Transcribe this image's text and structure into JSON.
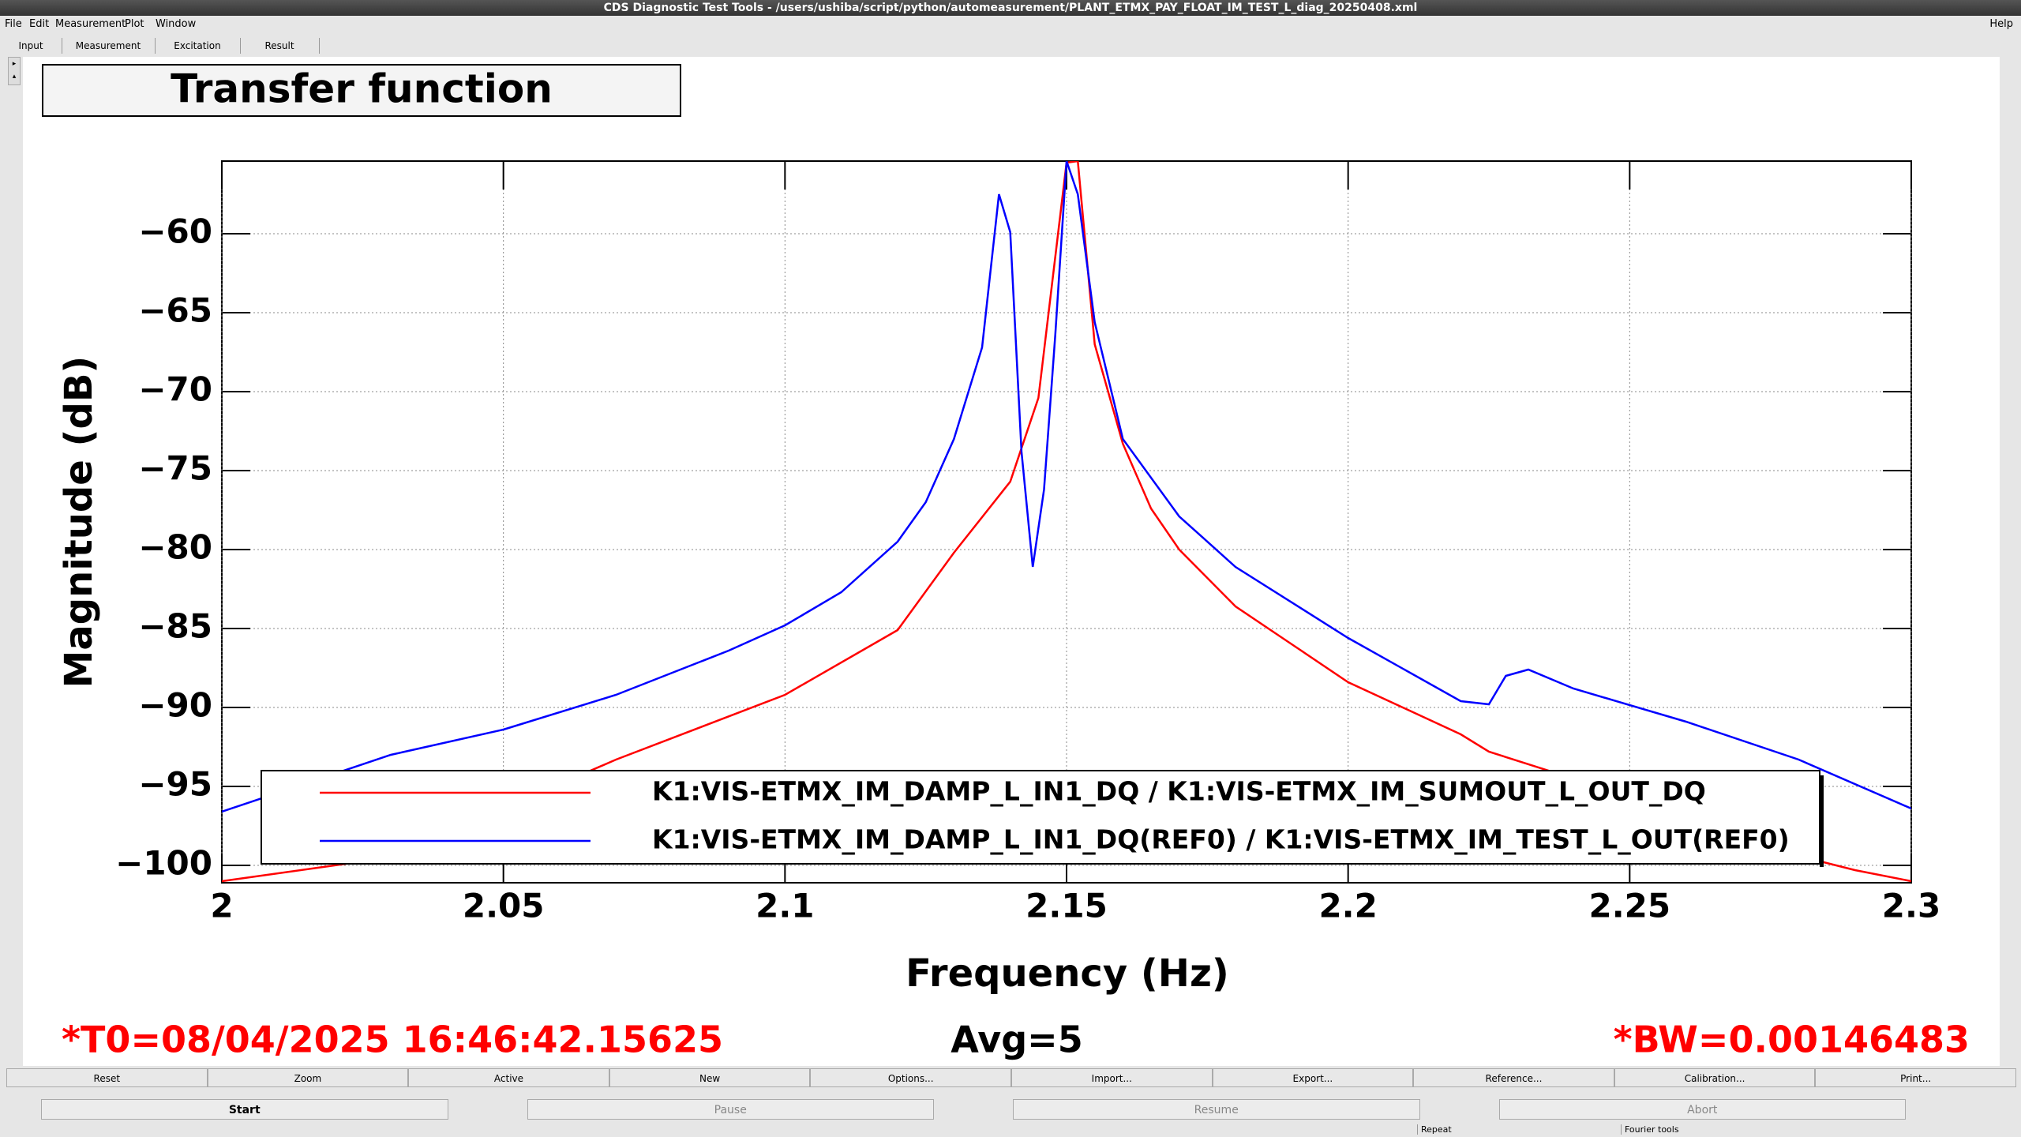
{
  "window": {
    "title": "CDS Diagnostic Test Tools - /users/ushiba/script/python/automeasurement/PLANT_ETMX_PAY_FLOAT_IM_TEST_L_diag_20250408.xml"
  },
  "menu": [
    "File",
    "Edit",
    "Measurement",
    "Plot",
    "Window"
  ],
  "help": "Help",
  "tabs": [
    "Input",
    "Measurement",
    "Excitation",
    "Result"
  ],
  "chart_data": {
    "type": "line",
    "title": "Transfer function",
    "xlabel": "Frequency (Hz)",
    "ylabel": "Magnitude (dB)",
    "xlim": [
      2,
      2.3
    ],
    "xticks": [
      2,
      2.05,
      2.1,
      2.15,
      2.2,
      2.25,
      2.3
    ],
    "ylim": [
      -101.1,
      -55.4
    ],
    "yticks": [
      {
        "value": -100,
        "label": "−100"
      },
      {
        "value": -95,
        "label": "−95"
      },
      {
        "value": -90,
        "label": "−90"
      },
      {
        "value": -85,
        "label": "−85"
      },
      {
        "value": -80,
        "label": "−80"
      },
      {
        "value": -75,
        "label": "−75"
      },
      {
        "value": -70,
        "label": "−70"
      },
      {
        "value": -65,
        "label": "−65"
      },
      {
        "value": -60,
        "label": "−60"
      }
    ],
    "grid": true,
    "series": [
      {
        "name": "K1:VIS-ETMX_IM_DAMP_L_IN1_DQ / K1:VIS-ETMX_IM_SUMOUT_L_OUT_DQ",
        "color": "#ff0000",
        "x": [
          2,
          2.03,
          2.07,
          2.1,
          2.12,
          2.13,
          2.14,
          2.145,
          2.15,
          2.152,
          2.155,
          2.16,
          2.165,
          2.17,
          2.18,
          2.19,
          2.2,
          2.22,
          2.225,
          2.24,
          2.26,
          2.28,
          2.29,
          2.3
        ],
        "values": [
          -101,
          -99.5,
          -93.3,
          -89.2,
          -85.1,
          -80.2,
          -75.7,
          -70.4,
          -55.5,
          -55.4,
          -67,
          -73.3,
          -77.4,
          -80,
          -83.6,
          -86,
          -88.4,
          -91.7,
          -92.8,
          -94.5,
          -97,
          -99.4,
          -100.3,
          -101
        ]
      },
      {
        "name": "K1:VIS-ETMX_IM_DAMP_L_IN1_DQ(REF0) / K1:VIS-ETMX_IM_TEST_L_OUT(REF0)",
        "color": "#0000ff",
        "x": [
          2,
          2.03,
          2.05,
          2.07,
          2.09,
          2.1,
          2.11,
          2.12,
          2.125,
          2.13,
          2.135,
          2.138,
          2.14,
          2.142,
          2.144,
          2.146,
          2.148,
          2.15,
          2.152,
          2.155,
          2.16,
          2.17,
          2.18,
          2.2,
          2.22,
          2.225,
          2.228,
          2.232,
          2.24,
          2.26,
          2.28,
          2.3
        ],
        "values": [
          -96.6,
          -93,
          -91.4,
          -89.2,
          -86.4,
          -84.8,
          -82.7,
          -79.5,
          -77,
          -73,
          -67.2,
          -57.5,
          -59.9,
          -73.8,
          -81.1,
          -76.2,
          -66.4,
          -55.4,
          -57.5,
          -65.6,
          -73,
          -77.9,
          -81.1,
          -85.6,
          -89.6,
          -89.8,
          -88,
          -87.6,
          -88.8,
          -90.9,
          -93.3,
          -96.4
        ]
      }
    ]
  },
  "status": {
    "t0": "*T0=08/04/2025 16:46:42.15625",
    "avg": "Avg=5",
    "bw": "*BW=0.00146483"
  },
  "buttons": [
    "Reset",
    "Zoom",
    "Active",
    "New",
    "Options...",
    "Import...",
    "Export...",
    "Reference...",
    "Calibration...",
    "Print..."
  ],
  "controls": [
    "Start",
    "Pause",
    "Resume",
    "Abort"
  ],
  "footer": [
    "Repeat",
    "Fourier tools"
  ]
}
